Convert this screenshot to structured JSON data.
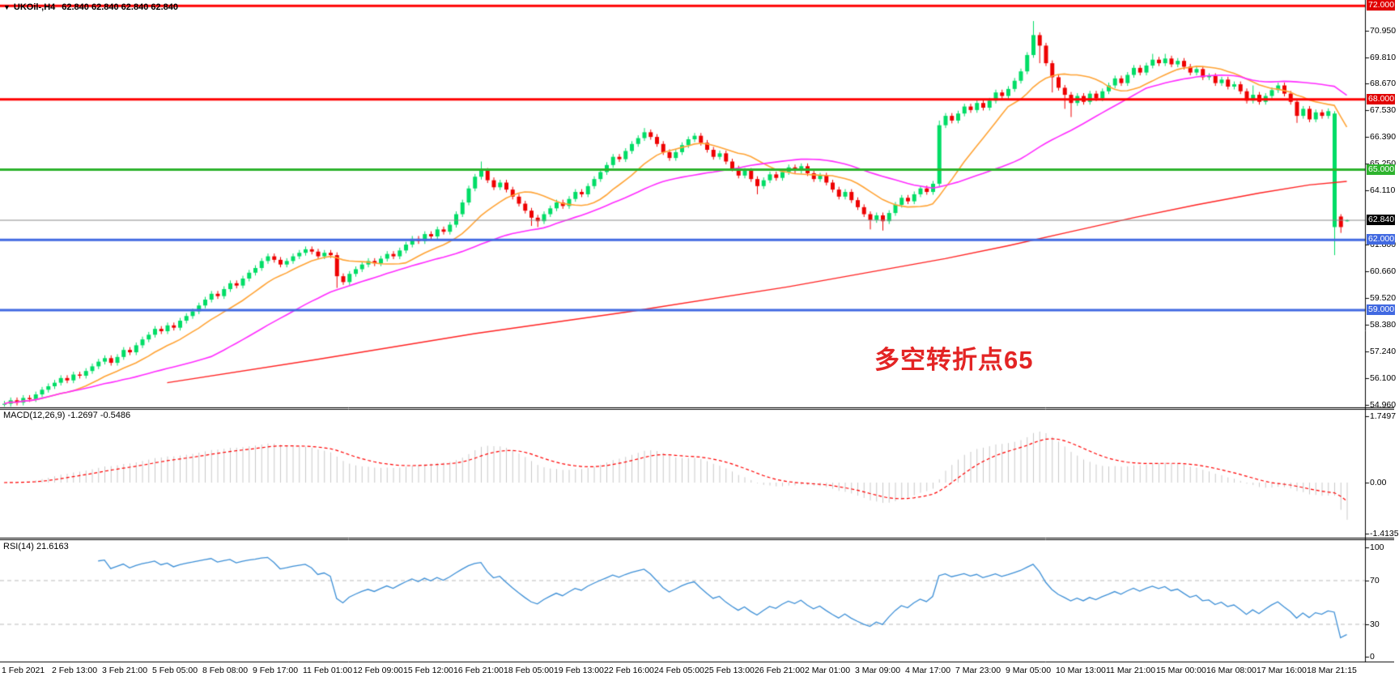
{
  "window": {
    "title_symbol": "UKOil-,H4",
    "title_ohlc": "62.840 62.840 62.840 62.840"
  },
  "icons": {
    "dropdown": "▼"
  },
  "annotation": {
    "text": "多空转折点65",
    "color": "#e32424"
  },
  "price_axis": {
    "ticks": [
      {
        "label": "70.950",
        "price": 70.95
      },
      {
        "label": "69.810",
        "price": 69.81
      },
      {
        "label": "68.670",
        "price": 68.67
      },
      {
        "label": "67.530",
        "price": 67.53
      },
      {
        "label": "66.390",
        "price": 66.39
      },
      {
        "label": "65.250",
        "price": 65.25
      },
      {
        "label": "64.110",
        "price": 64.11
      },
      {
        "label": "61.800",
        "price": 61.8
      },
      {
        "label": "60.660",
        "price": 60.66
      },
      {
        "label": "59.520",
        "price": 59.52
      },
      {
        "label": "58.380",
        "price": 58.38
      },
      {
        "label": "57.240",
        "price": 57.24
      },
      {
        "label": "56.100",
        "price": 56.1
      },
      {
        "label": "54.960",
        "price": 54.96
      }
    ],
    "line_labels": [
      {
        "label": "72.000",
        "price": 72.0,
        "bg": "#e10000"
      },
      {
        "label": "68.000",
        "price": 68.0,
        "bg": "#e10000"
      },
      {
        "label": "65.000",
        "price": 65.0,
        "bg": "#2db32d"
      },
      {
        "label": "62.840",
        "price": 62.84,
        "bg": "#000000"
      },
      {
        "label": "62.000",
        "price": 62.0,
        "bg": "#4169e1"
      },
      {
        "label": "59.000",
        "price": 59.0,
        "bg": "#4169e1"
      }
    ]
  },
  "time_axis": {
    "labels": [
      "1 Feb 2021",
      "2 Feb 13:00",
      "3 Feb 21:00",
      "5 Feb 05:00",
      "8 Feb 08:00",
      "9 Feb 17:00",
      "11 Feb 01:00",
      "12 Feb 09:00",
      "15 Feb 12:00",
      "16 Feb 21:00",
      "18 Feb 05:00",
      "19 Feb 13:00",
      "22 Feb 16:00",
      "24 Feb 05:00",
      "25 Feb 13:00",
      "26 Feb 21:00",
      "2 Mar 01:00",
      "3 Mar 09:00",
      "4 Mar 17:00",
      "7 Mar 23:00",
      "9 Mar 05:00",
      "10 Mar 13:00",
      "11 Mar 21:00",
      "15 Mar 00:00",
      "16 Mar 08:00",
      "17 Mar 16:00",
      "18 Mar 21:15"
    ]
  },
  "macd": {
    "label": "MACD(12,26,9) -1.2697 -0.5486",
    "name": "MACD",
    "params": "12,26,9",
    "value_main": "-1.2697",
    "value_signal": "-0.5486",
    "axis": [
      {
        "label": "1.7497",
        "y": 514
      },
      {
        "label": "0.00",
        "y": 596
      },
      {
        "label": "-1.4135",
        "y": 659
      }
    ]
  },
  "rsi": {
    "label": "RSI(14) 21.6163",
    "name": "RSI",
    "params": "14",
    "value": "21.6163",
    "axis": [
      {
        "label": "100",
        "value": 100
      },
      {
        "label": "70",
        "value": 70
      },
      {
        "label": "30",
        "value": 30
      },
      {
        "label": "0",
        "value": 0
      }
    ],
    "dashed_levels": [
      70,
      30
    ]
  },
  "chart_data": {
    "type": "candlestick",
    "symbol": "UKOil",
    "timeframe": "H4",
    "current_price": 62.84,
    "ylim": [
      54.85,
      72.25
    ],
    "closes": [
      55.0,
      55.15,
      55.05,
      55.25,
      55.2,
      55.4,
      55.6,
      55.75,
      55.9,
      56.1,
      56.0,
      56.25,
      56.2,
      56.4,
      56.6,
      56.8,
      56.95,
      56.75,
      57.0,
      57.3,
      57.2,
      57.5,
      57.75,
      57.95,
      58.2,
      58.1,
      58.35,
      58.25,
      58.55,
      58.75,
      58.95,
      59.2,
      59.45,
      59.7,
      59.6,
      59.9,
      60.15,
      60.05,
      60.35,
      60.6,
      60.8,
      61.1,
      61.3,
      61.15,
      60.95,
      61.1,
      61.3,
      61.45,
      61.6,
      61.5,
      61.3,
      61.45,
      61.35,
      60.45,
      60.2,
      60.55,
      60.75,
      60.95,
      61.1,
      61.0,
      61.2,
      61.4,
      61.3,
      61.55,
      61.8,
      62.05,
      61.95,
      62.25,
      62.15,
      62.45,
      62.35,
      62.65,
      63.1,
      63.6,
      64.2,
      64.7,
      64.95,
      64.55,
      64.25,
      64.45,
      64.15,
      63.85,
      63.55,
      63.25,
      62.95,
      62.8,
      63.1,
      63.35,
      63.6,
      63.45,
      63.75,
      64.05,
      63.95,
      64.3,
      64.6,
      64.9,
      65.2,
      65.55,
      65.45,
      65.8,
      66.1,
      66.35,
      66.6,
      66.4,
      66.1,
      65.75,
      65.5,
      65.75,
      66.05,
      66.3,
      66.45,
      66.15,
      65.85,
      65.55,
      65.7,
      65.35,
      65.05,
      64.75,
      64.95,
      64.6,
      64.3,
      64.55,
      64.8,
      64.65,
      64.9,
      65.1,
      64.95,
      65.15,
      64.85,
      64.6,
      64.75,
      64.45,
      64.15,
      63.85,
      64.05,
      63.7,
      63.4,
      63.1,
      62.85,
      63.05,
      62.8,
      63.15,
      63.5,
      63.8,
      63.65,
      63.95,
      64.2,
      64.05,
      64.4,
      66.9,
      67.3,
      67.1,
      67.4,
      67.7,
      67.55,
      67.85,
      67.65,
      67.95,
      68.3,
      68.15,
      68.45,
      68.8,
      69.2,
      69.9,
      70.75,
      70.3,
      69.55,
      68.95,
      68.5,
      68.2,
      67.85,
      68.15,
      67.9,
      68.25,
      68.05,
      68.35,
      68.6,
      68.9,
      68.7,
      69.05,
      69.35,
      69.15,
      69.45,
      69.7,
      69.55,
      69.75,
      69.5,
      69.65,
      69.4,
      69.15,
      69.3,
      68.95,
      69.0,
      68.7,
      68.85,
      68.55,
      68.65,
      68.35,
      67.95,
      68.2,
      67.9,
      68.15,
      68.4,
      68.6,
      68.25,
      67.9,
      67.3,
      67.6,
      67.15,
      67.45,
      67.3,
      67.5,
      67.4,
      62.55,
      62.84
    ],
    "default_wick": 0.12,
    "overrides": {
      "53": {
        "l": 59.95
      },
      "76": {
        "h": 65.35
      },
      "84": {
        "l": 62.6
      },
      "85": {
        "l": 62.55
      },
      "102": {
        "h": 66.78
      },
      "120": {
        "l": 63.95
      },
      "138": {
        "l": 62.45
      },
      "140": {
        "l": 62.4
      },
      "149": {
        "h": 67.1
      },
      "164": {
        "h": 71.35
      },
      "165": {
        "l": 69.55
      },
      "167": {
        "l": 68.3
      },
      "169": {
        "l": 67.6
      },
      "170": {
        "l": 67.25
      },
      "183": {
        "h": 69.95
      },
      "185": {
        "h": 69.95
      },
      "199": {
        "h": 68.6
      },
      "206": {
        "l": 67.0
      },
      "212": {
        "o": 62.55,
        "h": 67.5,
        "l": 61.35,
        "c": 67.4
      },
      "213": {
        "o": 63.0,
        "h": 63.1,
        "l": 62.3,
        "c": 62.55
      },
      "214": {
        "o": 62.84,
        "h": 62.88,
        "l": 62.78,
        "c": 62.84
      }
    },
    "hlines": [
      {
        "price": 72.0,
        "color": "#ff0000",
        "width": 3
      },
      {
        "price": 68.0,
        "color": "#ff0000",
        "width": 3
      },
      {
        "price": 65.0,
        "color": "#2db32d",
        "width": 3
      },
      {
        "price": 62.84,
        "color": "#888888",
        "width": 1
      },
      {
        "price": 62.0,
        "color": "#4169e1",
        "width": 3
      },
      {
        "price": 59.0,
        "color": "#4169e1",
        "width": 3
      }
    ],
    "moving_averages": {
      "orange_sma_period": 12,
      "magenta_sma_period": 34,
      "red_slow_anchors": [
        [
          26,
          55.9
        ],
        [
          50,
          56.9
        ],
        [
          75,
          58.0
        ],
        [
          100,
          58.95
        ],
        [
          125,
          60.0
        ],
        [
          150,
          61.2
        ],
        [
          160,
          61.75
        ],
        [
          170,
          62.35
        ],
        [
          180,
          62.95
        ],
        [
          190,
          63.5
        ],
        [
          200,
          64.0
        ],
        [
          208,
          64.35
        ],
        [
          214,
          64.5
        ]
      ]
    },
    "colors": {
      "up": "#00dd66",
      "down": "#ee0000",
      "ma_orange": "#ffa335",
      "ma_magenta": "#ff2bff",
      "ma_red": "#ff2222",
      "macd_histogram": "#c9c9c9",
      "macd_signal": "#ff0000",
      "rsi_line": "#3d8fd6",
      "level_dash": "#bbbbbb"
    }
  }
}
